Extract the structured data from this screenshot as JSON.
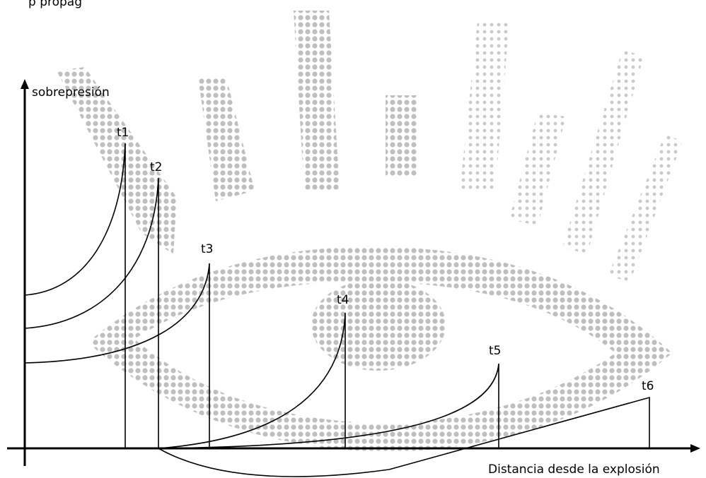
{
  "header": {
    "fragment": "p propag"
  },
  "axes": {
    "y_label": "sobrepresión",
    "x_label": "Distancia desde la explosión"
  },
  "curves": [
    {
      "label": "t1"
    },
    {
      "label": "t2"
    },
    {
      "label": "t3"
    },
    {
      "label": "t4"
    },
    {
      "label": "t5"
    },
    {
      "label": "t6"
    }
  ]
}
